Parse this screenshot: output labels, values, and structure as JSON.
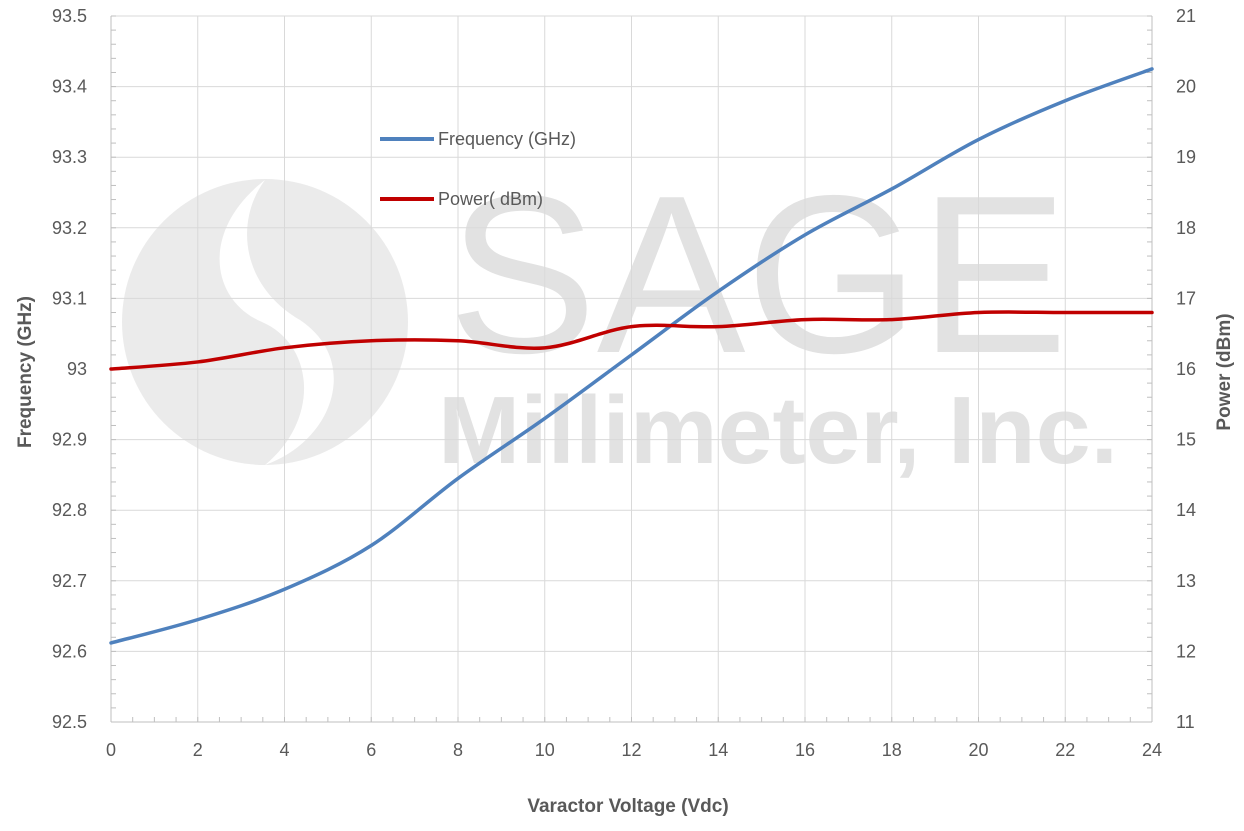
{
  "watermark": {
    "line1": "SAGE",
    "line2": "Millimeter, Inc."
  },
  "chart_data": {
    "type": "line",
    "title": "",
    "xlabel": "Varactor Voltage (Vdc)",
    "ylabel": "Frequency (GHz)",
    "y2label": "Power (dBm)",
    "xlim": [
      0,
      24
    ],
    "ylim": [
      92.5,
      93.5
    ],
    "y2lim": [
      11,
      21
    ],
    "x_ticks": [
      0,
      2,
      4,
      6,
      8,
      10,
      12,
      14,
      16,
      18,
      20,
      22,
      24
    ],
    "y_ticks": [
      "92.5",
      "92.6",
      "92.7",
      "92.8",
      "92.9",
      "93",
      "93.1",
      "93.2",
      "93.3",
      "93.4",
      "93.5"
    ],
    "y2_ticks": [
      "11",
      "12",
      "13",
      "14",
      "15",
      "16",
      "17",
      "18",
      "19",
      "20",
      "21"
    ],
    "grid": true,
    "legend_position": "upper-center",
    "series": [
      {
        "name": "Frequency (GHz)",
        "axis": "left",
        "color": "#4f81bd",
        "x": [
          0,
          2,
          4,
          6,
          8,
          10,
          12,
          14,
          16,
          18,
          20,
          22,
          24
        ],
        "values": [
          92.612,
          92.645,
          92.688,
          92.75,
          92.845,
          92.93,
          93.02,
          93.11,
          93.19,
          93.255,
          93.325,
          93.38,
          93.425
        ]
      },
      {
        "name": "Power( dBm)",
        "axis": "right",
        "color": "#c00000",
        "x": [
          0,
          2,
          4,
          6,
          8,
          10,
          12,
          14,
          16,
          18,
          20,
          22,
          24
        ],
        "values": [
          16.0,
          16.1,
          16.3,
          16.4,
          16.4,
          16.3,
          16.6,
          16.6,
          16.7,
          16.7,
          16.8,
          16.8,
          16.8
        ]
      }
    ]
  }
}
